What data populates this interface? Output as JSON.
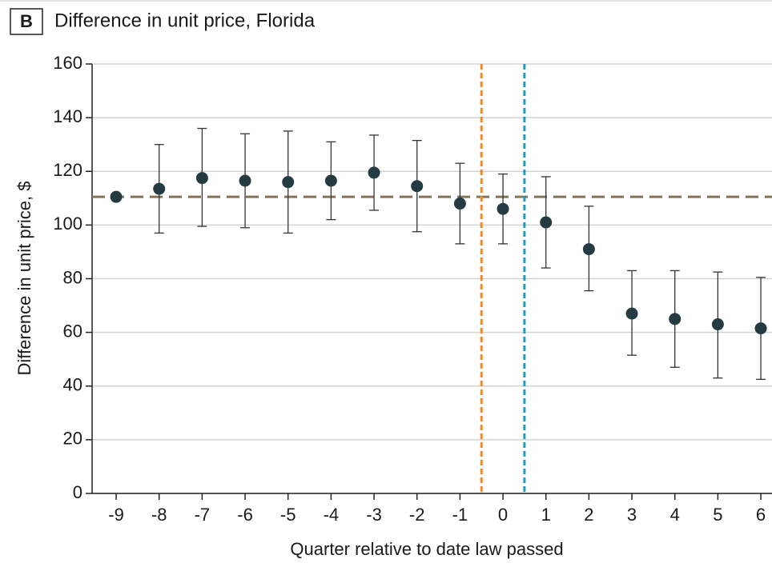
{
  "chart_data": {
    "type": "scatter",
    "panel_label": "B",
    "title": "Difference in unit price, Florida",
    "x_label": "Quarter relative to date law passed",
    "y_label": "Difference in unit price, $",
    "xlim": [
      -9.56,
      6.26
    ],
    "ylim": [
      0,
      160
    ],
    "xticks": [
      -9,
      -8,
      -7,
      -6,
      -5,
      -4,
      -3,
      -2,
      -1,
      0,
      1,
      2,
      3,
      4,
      5,
      6
    ],
    "yticks": [
      0,
      20,
      40,
      60,
      80,
      100,
      120,
      140,
      160
    ],
    "grid": true,
    "hline": {
      "y": 110.5,
      "color": "#857558"
    },
    "vlines": [
      {
        "x": -0.5,
        "color": "#f08a1c"
      },
      {
        "x": 0.5,
        "color": "#1d9cc0"
      }
    ],
    "series": [
      {
        "color": "#243b42",
        "x": [
          -9,
          -8,
          -7,
          -6,
          -5,
          -4,
          -3,
          -2,
          -1,
          0,
          1,
          2,
          3,
          4,
          5,
          6
        ],
        "values": [
          110.5,
          113.5,
          117.5,
          116.5,
          116,
          116.5,
          119.5,
          114.5,
          108,
          106,
          101,
          91,
          67,
          65,
          63,
          61.5
        ],
        "lower": [
          null,
          97,
          99.5,
          99,
          97,
          102,
          105.5,
          97.5,
          93,
          93,
          84,
          75.5,
          51.5,
          47,
          43,
          42.5
        ],
        "upper": [
          null,
          130,
          136,
          134,
          135,
          131,
          133.5,
          131.5,
          123,
          119,
          118,
          107,
          83,
          83,
          82.5,
          80.5
        ]
      }
    ]
  }
}
